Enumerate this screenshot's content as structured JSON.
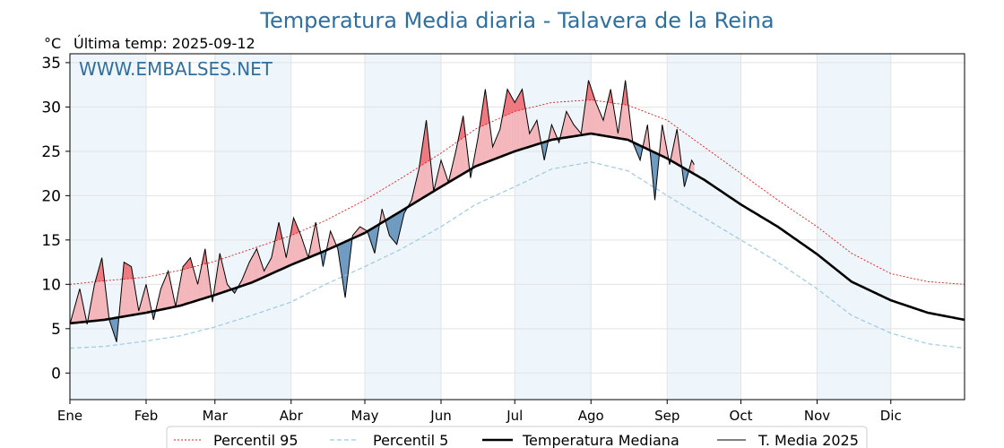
{
  "chart_data": {
    "type": "line",
    "title": "Temperatura Media diaria - Talavera de la Reina",
    "ylabel": "°C",
    "subtitle": "Última temp: 2025-09-12",
    "watermark": "WWW.EMBALSES.NET",
    "ylim": [
      -3,
      36
    ],
    "yticks": [
      0,
      5,
      10,
      15,
      20,
      25,
      30,
      35
    ],
    "grid": true,
    "legend_position": "bottom",
    "month_labels": [
      "Ene",
      "Feb",
      "Mar",
      "Abr",
      "May",
      "Jun",
      "Jul",
      "Ago",
      "Sep",
      "Oct",
      "Nov",
      "Dic"
    ],
    "month_start_days": [
      1,
      32,
      60,
      91,
      121,
      152,
      182,
      213,
      244,
      274,
      305,
      335
    ],
    "days_in_year": 365,
    "colors": {
      "p95": "#e31a1c",
      "p5": "#9ecae1",
      "median": "#000000",
      "current": "#000000",
      "above_fill": "#f4b6ba",
      "above_p95_fill": "#ee6f77",
      "below_fill": "#6d99c0",
      "band_shade": "#eef5fb"
    },
    "legend": [
      {
        "key": "p95",
        "label": "Percentil 95"
      },
      {
        "key": "p5",
        "label": "Percentil 5"
      },
      {
        "key": "median",
        "label": "Temperatura Mediana"
      },
      {
        "key": "current",
        "label": "T. Media 2025"
      }
    ],
    "series": [
      {
        "key": "p95",
        "name": "Percentil 95",
        "x": [
          1,
          15,
          32,
          46,
          60,
          75,
          91,
          105,
          121,
          136,
          152,
          166,
          182,
          197,
          213,
          228,
          244,
          259,
          274,
          289,
          305,
          319,
          335,
          350,
          365
        ],
        "values": [
          10.0,
          10.4,
          10.8,
          11.6,
          12.6,
          14.0,
          15.5,
          17.2,
          19.5,
          22.0,
          24.8,
          27.5,
          29.5,
          30.5,
          30.8,
          30.2,
          28.5,
          25.5,
          22.5,
          19.5,
          16.5,
          13.5,
          11.2,
          10.3,
          10.0
        ]
      },
      {
        "key": "p5",
        "name": "Percentil 5",
        "x": [
          1,
          15,
          32,
          46,
          60,
          75,
          91,
          105,
          121,
          136,
          152,
          166,
          182,
          197,
          213,
          228,
          244,
          259,
          274,
          289,
          305,
          319,
          335,
          350,
          365
        ],
        "values": [
          2.8,
          3.0,
          3.6,
          4.2,
          5.2,
          6.5,
          8.0,
          10.0,
          12.0,
          14.0,
          16.5,
          19.0,
          21.0,
          23.0,
          23.8,
          22.8,
          20.0,
          17.5,
          15.0,
          12.5,
          9.5,
          6.5,
          4.5,
          3.3,
          2.8
        ]
      },
      {
        "key": "median",
        "name": "Temperatura Mediana",
        "x": [
          1,
          15,
          32,
          46,
          60,
          75,
          91,
          105,
          121,
          136,
          152,
          166,
          182,
          197,
          213,
          228,
          244,
          259,
          274,
          289,
          305,
          319,
          335,
          350,
          365
        ],
        "values": [
          5.6,
          6.0,
          6.8,
          7.6,
          8.8,
          10.2,
          12.2,
          13.8,
          15.8,
          18.3,
          21.0,
          23.3,
          25.0,
          26.3,
          27.0,
          26.3,
          24.2,
          21.8,
          19.0,
          16.5,
          13.4,
          10.3,
          8.2,
          6.8,
          6.0
        ]
      },
      {
        "key": "current",
        "name": "T. Media 2025",
        "x": [
          1,
          5,
          8,
          11,
          14,
          17,
          20,
          23,
          26,
          29,
          32,
          35,
          38,
          41,
          44,
          47,
          50,
          53,
          56,
          59,
          62,
          65,
          68,
          71,
          74,
          77,
          80,
          83,
          86,
          89,
          92,
          95,
          98,
          101,
          104,
          107,
          110,
          113,
          116,
          119,
          122,
          125,
          128,
          131,
          134,
          137,
          140,
          143,
          146,
          149,
          152,
          155,
          158,
          161,
          164,
          167,
          170,
          173,
          176,
          179,
          182,
          185,
          188,
          191,
          194,
          197,
          200,
          203,
          206,
          209,
          212,
          215,
          218,
          221,
          224,
          227,
          230,
          233,
          236,
          239,
          242,
          245,
          248,
          251,
          254,
          255
        ],
        "values": [
          5.5,
          9.5,
          5.5,
          10.0,
          13.0,
          6.0,
          3.5,
          12.5,
          12.0,
          7.0,
          10.0,
          6.0,
          9.5,
          11.5,
          7.5,
          12.0,
          13.0,
          10.0,
          14.0,
          8.0,
          13.5,
          10.0,
          9.0,
          10.5,
          12.5,
          14.0,
          11.5,
          13.0,
          17.0,
          13.0,
          17.5,
          15.5,
          13.0,
          17.0,
          12.0,
          16.0,
          14.0,
          8.5,
          15.5,
          16.5,
          16.0,
          13.5,
          18.5,
          15.5,
          14.5,
          18.0,
          19.5,
          23.0,
          28.5,
          20.5,
          24.0,
          21.5,
          25.0,
          29.0,
          22.0,
          26.5,
          32.0,
          25.5,
          27.5,
          32.0,
          30.5,
          32.0,
          27.0,
          28.5,
          24.0,
          28.0,
          26.0,
          29.5,
          28.0,
          27.0,
          33.0,
          30.5,
          28.5,
          32.0,
          27.0,
          33.0,
          26.0,
          24.0,
          28.0,
          19.5,
          28.0,
          23.5,
          27.5,
          21.0,
          24.0,
          23.5
        ]
      }
    ]
  }
}
